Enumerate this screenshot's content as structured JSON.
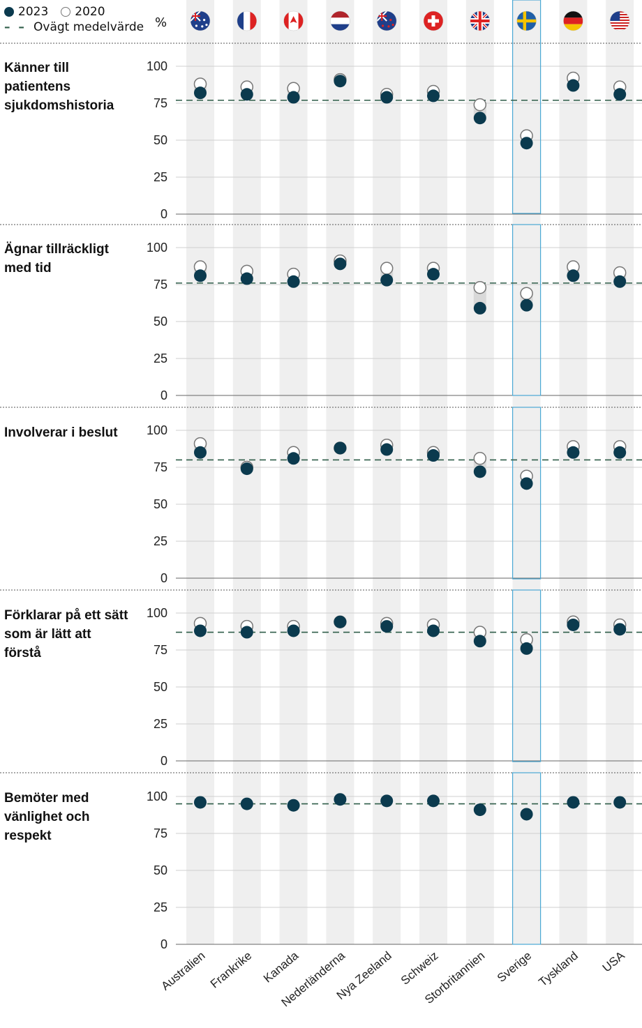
{
  "legend": {
    "label_2023": "2023",
    "label_2020": "2020",
    "label_mean": "Ovägt medelvärde"
  },
  "unit_label": "%",
  "colors": {
    "filled": "#0b3a4e",
    "open_stroke": "#777777",
    "mean_line": "#2f5d49",
    "column_band": "#efefef",
    "highlight": "#4aa8d4"
  },
  "highlight_country": "Sverige",
  "countries": [
    {
      "name": "Australien",
      "flag": "australia-flag-icon"
    },
    {
      "name": "Frankrike",
      "flag": "france-flag-icon"
    },
    {
      "name": "Kanada",
      "flag": "canada-flag-icon"
    },
    {
      "name": "Nederländerna",
      "flag": "netherlands-flag-icon"
    },
    {
      "name": "Nya Zeeland",
      "flag": "new-zealand-flag-icon"
    },
    {
      "name": "Schweiz",
      "flag": "switzerland-flag-icon"
    },
    {
      "name": "Storbritannien",
      "flag": "uk-flag-icon"
    },
    {
      "name": "Sverige",
      "flag": "sweden-flag-icon"
    },
    {
      "name": "Tyskland",
      "flag": "germany-flag-icon"
    },
    {
      "name": "USA",
      "flag": "usa-flag-icon"
    }
  ],
  "chart_data": {
    "type": "scatter",
    "ylim": [
      0,
      100
    ],
    "yticks": [
      0,
      25,
      50,
      75,
      100
    ],
    "categories": [
      "Australien",
      "Frankrike",
      "Kanada",
      "Nederländerna",
      "Nya Zeeland",
      "Schweiz",
      "Storbritannien",
      "Sverige",
      "Tyskland",
      "USA"
    ],
    "panels": [
      {
        "title": "Känner till patientens sjukdomshistoria",
        "mean": 77,
        "series": [
          {
            "name": "2023",
            "values": [
              82,
              81,
              79,
              90,
              79,
              80,
              65,
              48,
              87,
              81
            ]
          },
          {
            "name": "2020",
            "values": [
              88,
              86,
              85,
              91,
              81,
              83,
              74,
              53,
              92,
              86
            ]
          }
        ]
      },
      {
        "title": "Ägnar tillräckligt med tid",
        "mean": 76,
        "series": [
          {
            "name": "2023",
            "values": [
              81,
              79,
              77,
              89,
              78,
              82,
              59,
              61,
              81,
              77
            ]
          },
          {
            "name": "2020",
            "values": [
              87,
              84,
              82,
              91,
              86,
              86,
              73,
              69,
              87,
              83
            ]
          }
        ]
      },
      {
        "title": "Involverar i beslut",
        "mean": 80,
        "series": [
          {
            "name": "2023",
            "values": [
              85,
              74,
              81,
              88,
              87,
              83,
              72,
              64,
              85,
              85
            ]
          },
          {
            "name": "2020",
            "values": [
              91,
              75,
              85,
              88,
              90,
              85,
              81,
              69,
              89,
              89
            ]
          }
        ]
      },
      {
        "title": "Förklarar på ett sätt som är lätt att förstå",
        "mean": 87,
        "series": [
          {
            "name": "2023",
            "values": [
              88,
              87,
              88,
              94,
              91,
              88,
              81,
              76,
              92,
              89
            ]
          },
          {
            "name": "2020",
            "values": [
              93,
              91,
              91,
              94,
              93,
              92,
              87,
              82,
              94,
              92
            ]
          }
        ]
      },
      {
        "title": "Bemöter med vänlighet och respekt",
        "mean": 95,
        "series": [
          {
            "name": "2023",
            "values": [
              96,
              95,
              94,
              98,
              97,
              97,
              91,
              88,
              96,
              96
            ]
          }
        ]
      }
    ]
  }
}
